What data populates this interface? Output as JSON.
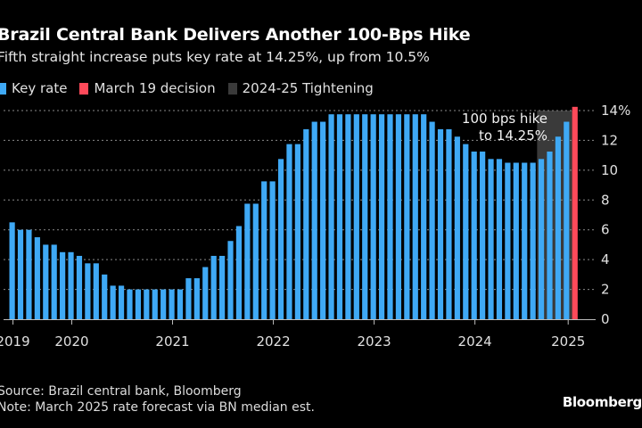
{
  "chart_data": {
    "type": "bar",
    "title": "Brazil Central Bank Delivers Another 100-Bps Hike",
    "subtitle": "Fifth straight increase puts key rate at 14.25%, up from 10.5%",
    "xlabel": "",
    "ylabel": "",
    "ylim": [
      0,
      14
    ],
    "yticks": [
      0,
      2,
      4,
      6,
      8,
      10,
      12,
      14
    ],
    "ytick_labels": [
      "0",
      "2",
      "4",
      "6",
      "8",
      "10",
      "12",
      "14%"
    ],
    "y_axis_side": "right",
    "grid": true,
    "xtick_labels": [
      "2019",
      "2020",
      "2021",
      "2022",
      "2023",
      "2024",
      "2025"
    ],
    "xtick_bar_index": [
      0.1,
      7.1,
      19.1,
      31.1,
      43.1,
      55.1,
      66.2
    ],
    "legend": [
      {
        "label": "Key rate",
        "color": "#3fa9f5"
      },
      {
        "label": "March 19 decision",
        "color": "#ff4a5a"
      },
      {
        "label": "2024-25 Tightening",
        "color": "#3a3a3a"
      }
    ],
    "legend_position": "top-left",
    "series": [
      {
        "name": "Key rate",
        "color": "#3fa9f5",
        "values": [
          6.5,
          6.0,
          6.0,
          5.5,
          5.0,
          5.0,
          4.5,
          4.5,
          4.25,
          3.75,
          3.75,
          3.0,
          2.25,
          2.25,
          2.0,
          2.0,
          2.0,
          2.0,
          2.0,
          2.0,
          2.0,
          2.75,
          2.75,
          3.5,
          4.25,
          4.25,
          5.25,
          6.25,
          7.75,
          7.75,
          9.25,
          9.25,
          10.75,
          11.75,
          11.75,
          12.75,
          13.25,
          13.25,
          13.75,
          13.75,
          13.75,
          13.75,
          13.75,
          13.75,
          13.75,
          13.75,
          13.75,
          13.75,
          13.75,
          13.75,
          13.25,
          12.75,
          12.75,
          12.25,
          11.75,
          11.25,
          11.25,
          10.75,
          10.75,
          10.5,
          10.5,
          10.5,
          10.5,
          10.75,
          11.25,
          12.25,
          13.25
        ]
      },
      {
        "name": "March 19 decision",
        "color": "#ff4a5a",
        "values": [
          14.25
        ]
      }
    ],
    "shaded_region": {
      "label": "2024-25 Tightening",
      "start_bar_index": 63,
      "end_bar_index": 67,
      "color": "#3a3a3a"
    },
    "annotations": [
      {
        "text_lines": [
          "100 bps hike",
          "to 14.25%"
        ]
      }
    ]
  },
  "footer": {
    "source": "Source: Brazil central bank, Bloomberg",
    "note": "Note: March 2025 rate forecast via BN median est.",
    "brand": "Bloomberg"
  }
}
